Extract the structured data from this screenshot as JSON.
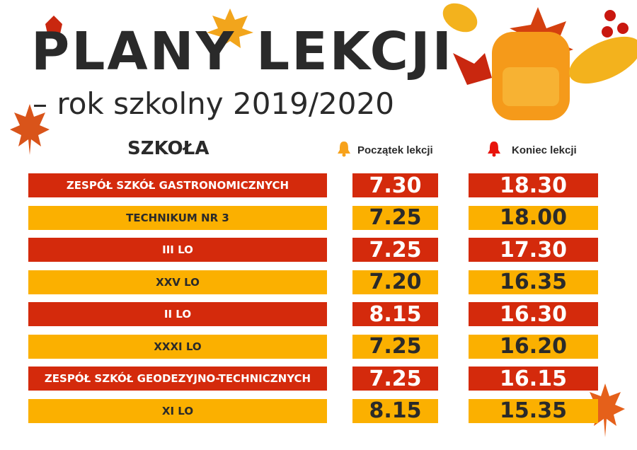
{
  "header": {
    "title": "PLANY LEKCJI",
    "subtitle": "– rok szkolny 2019/2020"
  },
  "columns": {
    "school": "SZKOŁA",
    "start": "Początek lekcji",
    "end": "Koniec lekcji",
    "start_icon": "bell-icon",
    "end_icon": "bell-icon"
  },
  "colors": {
    "red": "#d42a0c",
    "orange": "#fbb000",
    "start_bell": "#f7a21b",
    "end_bell": "#e8140c"
  },
  "rows": [
    {
      "school": "ZESPÓŁ SZKÓŁ GASTRONOMICZNYCH",
      "start": "7.30",
      "end": "18.30",
      "color": "red"
    },
    {
      "school": "TECHNIKUM NR 3",
      "start": "7.25",
      "end": "18.00",
      "color": "orange"
    },
    {
      "school": "III LO",
      "start": "7.25",
      "end": "17.30",
      "color": "red"
    },
    {
      "school": "XXV LO",
      "start": "7.20",
      "end": "16.35",
      "color": "orange"
    },
    {
      "school": "II LO",
      "start": "8.15",
      "end": "16.30",
      "color": "red"
    },
    {
      "school": "XXXI LO",
      "start": "7.25",
      "end": "16.20",
      "color": "orange"
    },
    {
      "school": "ZESPÓŁ SZKÓŁ GEODEZYJNO-TECHNICZNYCH",
      "start": "7.25",
      "end": "16.15",
      "color": "red"
    },
    {
      "school": "XI LO",
      "start": "8.15",
      "end": "15.35",
      "color": "orange"
    }
  ]
}
